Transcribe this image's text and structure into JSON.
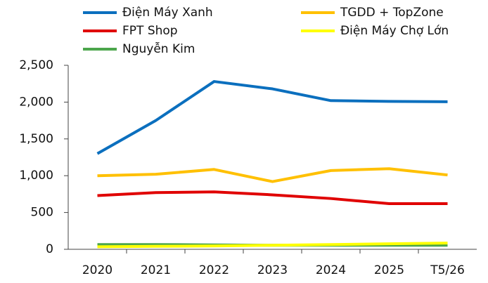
{
  "chart_data": {
    "type": "line",
    "categories": [
      "2020",
      "2021",
      "2022",
      "2023",
      "2024",
      "2025",
      "T5/26"
    ],
    "series": [
      {
        "name": "Điện Máy Xanh",
        "color": "#0b6fbe",
        "values": [
          1300,
          1750,
          2280,
          2180,
          2020,
          2010,
          2005
        ]
      },
      {
        "name": "TGDD + TopZone",
        "color": "#ffc000",
        "values": [
          1000,
          1020,
          1085,
          920,
          1070,
          1095,
          1010
        ]
      },
      {
        "name": "FPT Shop",
        "color": "#e00000",
        "values": [
          730,
          770,
          780,
          740,
          690,
          620,
          620
        ]
      },
      {
        "name": "Điện Máy Chợ Lớn",
        "color": "#ffff00",
        "values": [
          35,
          40,
          45,
          55,
          65,
          75,
          85
        ]
      },
      {
        "name": "Nguyễn Kim",
        "color": "#4ca64c",
        "values": [
          65,
          65,
          60,
          55,
          55,
          55,
          55
        ]
      }
    ],
    "ylim": [
      0,
      2500
    ],
    "yticks": [
      0,
      500,
      {
        "value": 1000,
        "label": "1,000"
      },
      {
        "value": 1500,
        "label": "1,500"
      },
      {
        "value": 2000,
        "label": "2,000"
      },
      {
        "value": 2500,
        "label": "2,500"
      }
    ],
    "grid": false
  }
}
